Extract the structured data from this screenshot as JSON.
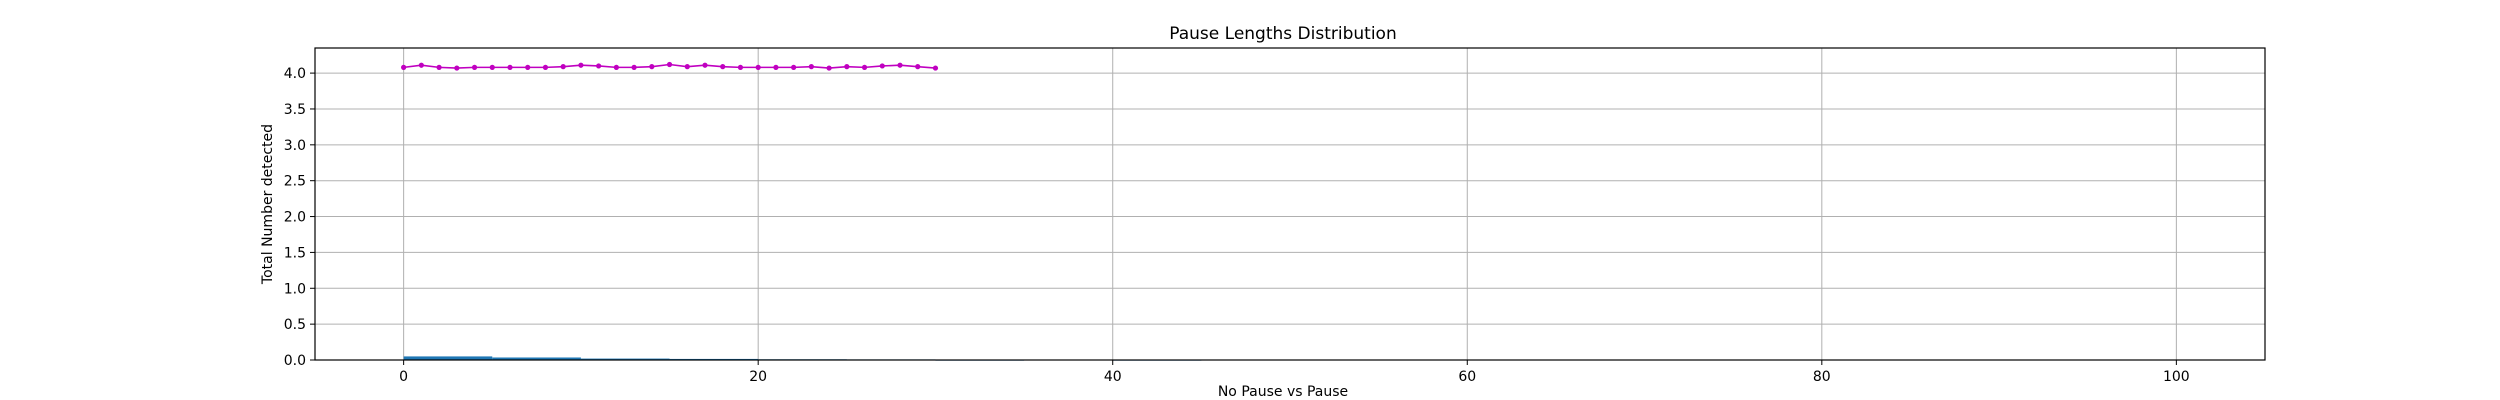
{
  "chart_data": {
    "type": "line",
    "title": "Pause Lengths Distribution",
    "xlabel": "No Pause vs Pause",
    "ylabel": "Total Number detected",
    "xlim": [
      -5,
      105
    ],
    "ylim": [
      0.0,
      4.35
    ],
    "x_ticks": [
      0,
      20,
      40,
      60,
      80,
      100
    ],
    "x_tick_labels": [
      "0",
      "20",
      "40",
      "60",
      "80",
      "100"
    ],
    "y_ticks": [
      0.0,
      0.5,
      1.0,
      1.5,
      2.0,
      2.5,
      3.0,
      3.5,
      4.0
    ],
    "y_tick_labels": [
      "0.0",
      "0.5",
      "1.0",
      "1.5",
      "2.0",
      "2.5",
      "3.0",
      "3.5",
      "4.0"
    ],
    "grid": true,
    "series": [
      {
        "kind": "line",
        "marker": "dot",
        "color": "#c000c0",
        "x": [
          0,
          1,
          2,
          3,
          4,
          5,
          6,
          7,
          8,
          9,
          10,
          11,
          12,
          13,
          14,
          15,
          16,
          17,
          18,
          19,
          20,
          21,
          22,
          23,
          24,
          25,
          26,
          27,
          28,
          29,
          30
        ],
        "values": [
          4.08,
          4.11,
          4.08,
          4.07,
          4.08,
          4.08,
          4.08,
          4.08,
          4.08,
          4.09,
          4.11,
          4.1,
          4.08,
          4.08,
          4.09,
          4.12,
          4.09,
          4.11,
          4.09,
          4.08,
          4.08,
          4.08,
          4.08,
          4.09,
          4.07,
          4.09,
          4.08,
          4.1,
          4.11,
          4.09,
          4.07
        ]
      },
      {
        "kind": "bars",
        "color": "#1f77b4",
        "bins": [
          {
            "x0": 0,
            "x1": 5,
            "value": 0.05
          },
          {
            "x0": 5,
            "x1": 10,
            "value": 0.035
          },
          {
            "x0": 10,
            "x1": 15,
            "value": 0.02
          },
          {
            "x0": 15,
            "x1": 20,
            "value": 0.015
          },
          {
            "x0": 20,
            "x1": 25,
            "value": 0.01
          },
          {
            "x0": 25,
            "x1": 30,
            "value": 0.008
          },
          {
            "x0": 30,
            "x1": 35,
            "value": 0.005
          },
          {
            "x0": 40,
            "x1": 45,
            "value": 0.005
          }
        ]
      }
    ]
  }
}
